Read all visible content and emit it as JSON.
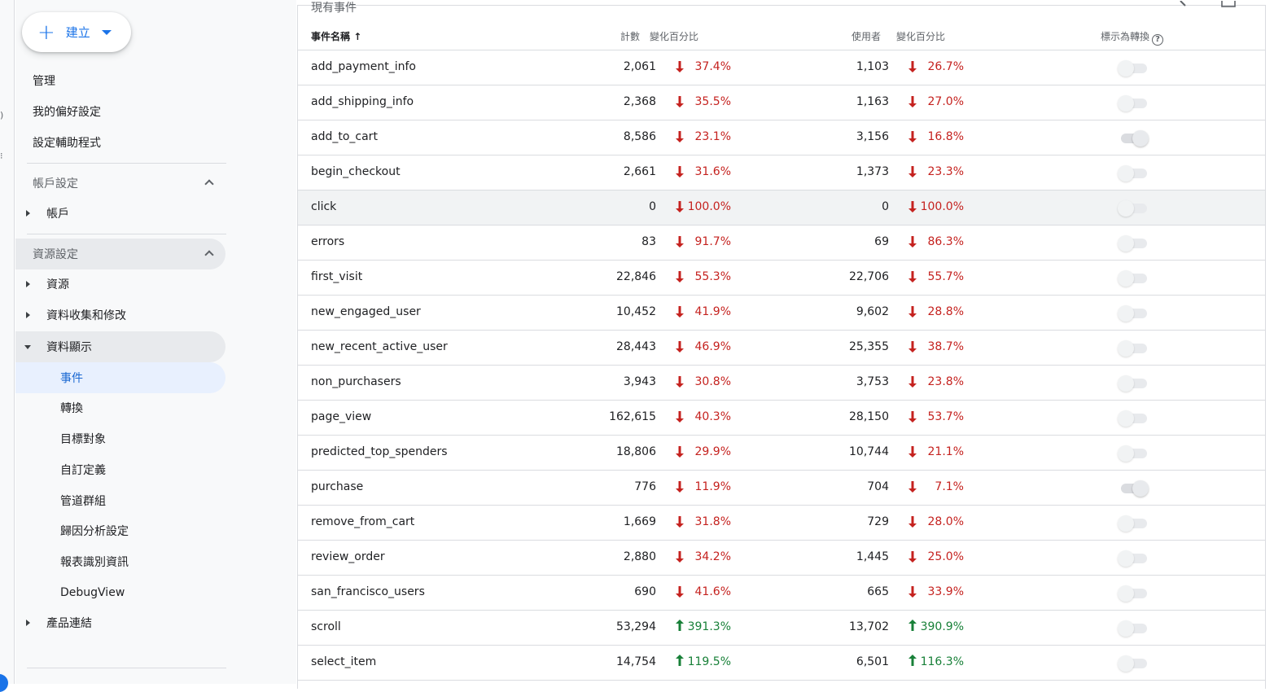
{
  "sidebar": {
    "create_label": "建立",
    "top_items": [
      "管理",
      "我的偏好設定",
      "設定輔助程式"
    ],
    "account_section": "帳戶設定",
    "account_item": "帳戶",
    "property_section": "資源設定",
    "property_items": [
      "資源",
      "資料收集和修改",
      "資料顯示"
    ],
    "display_subitems": [
      "事件",
      "轉換",
      "目標對象",
      "自訂定義",
      "管道群組",
      "歸因分析設定",
      "報表識別資訊",
      "DebugView"
    ],
    "product_links": "產品連結"
  },
  "table": {
    "title": "現有事件",
    "headers": {
      "name": "事件名稱",
      "count": "計數",
      "count_change": "變化百分比",
      "users": "使用者",
      "users_change": "變化百分比",
      "conversion": "標示為轉換"
    },
    "rows": [
      {
        "name": "add_payment_info",
        "count": "2,061",
        "count_pct": "37.4%",
        "count_dir": "down",
        "users": "1,103",
        "users_pct": "26.7%",
        "users_dir": "down",
        "conversion": false
      },
      {
        "name": "add_shipping_info",
        "count": "2,368",
        "count_pct": "35.5%",
        "count_dir": "down",
        "users": "1,163",
        "users_pct": "27.0%",
        "users_dir": "down",
        "conversion": false
      },
      {
        "name": "add_to_cart",
        "count": "8,586",
        "count_pct": "23.1%",
        "count_dir": "down",
        "users": "3,156",
        "users_pct": "16.8%",
        "users_dir": "down",
        "conversion": true
      },
      {
        "name": "begin_checkout",
        "count": "2,661",
        "count_pct": "31.6%",
        "count_dir": "down",
        "users": "1,373",
        "users_pct": "23.3%",
        "users_dir": "down",
        "conversion": false
      },
      {
        "name": "click",
        "count": "0",
        "count_pct": "100.0%",
        "count_dir": "down",
        "users": "0",
        "users_pct": "100.0%",
        "users_dir": "down",
        "conversion": false
      },
      {
        "name": "errors",
        "count": "83",
        "count_pct": "91.7%",
        "count_dir": "down",
        "users": "69",
        "users_pct": "86.3%",
        "users_dir": "down",
        "conversion": false
      },
      {
        "name": "first_visit",
        "count": "22,846",
        "count_pct": "55.3%",
        "count_dir": "down",
        "users": "22,706",
        "users_pct": "55.7%",
        "users_dir": "down",
        "conversion": false
      },
      {
        "name": "new_engaged_user",
        "count": "10,452",
        "count_pct": "41.9%",
        "count_dir": "down",
        "users": "9,602",
        "users_pct": "28.8%",
        "users_dir": "down",
        "conversion": false
      },
      {
        "name": "new_recent_active_user",
        "count": "28,443",
        "count_pct": "46.9%",
        "count_dir": "down",
        "users": "25,355",
        "users_pct": "38.7%",
        "users_dir": "down",
        "conversion": false
      },
      {
        "name": "non_purchasers",
        "count": "3,943",
        "count_pct": "30.8%",
        "count_dir": "down",
        "users": "3,753",
        "users_pct": "23.8%",
        "users_dir": "down",
        "conversion": false
      },
      {
        "name": "page_view",
        "count": "162,615",
        "count_pct": "40.3%",
        "count_dir": "down",
        "users": "28,150",
        "users_pct": "53.7%",
        "users_dir": "down",
        "conversion": false
      },
      {
        "name": "predicted_top_spenders",
        "count": "18,806",
        "count_pct": "29.9%",
        "count_dir": "down",
        "users": "10,744",
        "users_pct": "21.1%",
        "users_dir": "down",
        "conversion": false
      },
      {
        "name": "purchase",
        "count": "776",
        "count_pct": "11.9%",
        "count_dir": "down",
        "users": "704",
        "users_pct": "7.1%",
        "users_dir": "down",
        "conversion": true
      },
      {
        "name": "remove_from_cart",
        "count": "1,669",
        "count_pct": "31.8%",
        "count_dir": "down",
        "users": "729",
        "users_pct": "28.0%",
        "users_dir": "down",
        "conversion": false
      },
      {
        "name": "review_order",
        "count": "2,880",
        "count_pct": "34.2%",
        "count_dir": "down",
        "users": "1,445",
        "users_pct": "25.0%",
        "users_dir": "down",
        "conversion": false
      },
      {
        "name": "san_francisco_users",
        "count": "690",
        "count_pct": "41.6%",
        "count_dir": "down",
        "users": "665",
        "users_pct": "33.9%",
        "users_dir": "down",
        "conversion": false
      },
      {
        "name": "scroll",
        "count": "53,294",
        "count_pct": "391.3%",
        "count_dir": "up",
        "users": "13,702",
        "users_pct": "390.9%",
        "users_dir": "up",
        "conversion": false
      },
      {
        "name": "select_item",
        "count": "14,754",
        "count_pct": "119.5%",
        "count_dir": "up",
        "users": "6,501",
        "users_pct": "116.3%",
        "users_dir": "up",
        "conversion": false
      }
    ]
  },
  "colors": {
    "down": "#c5221f",
    "up": "#188038",
    "accent": "#1a73e8"
  }
}
